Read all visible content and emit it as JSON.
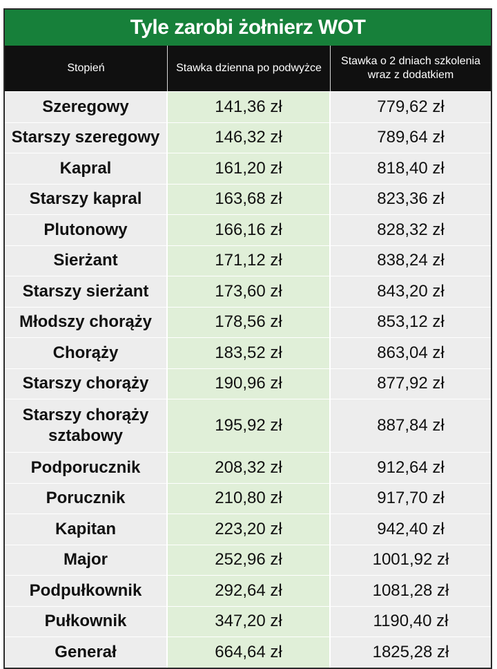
{
  "title": "Tyle zarobi żołnierz WOT",
  "headers": {
    "rank": "Stopień",
    "daily": "Stawka dzienna po podwyżce",
    "two_day": "Stawka o 2 dniach szkolenia wraz z dodatkiem"
  },
  "chart_data": {
    "type": "table",
    "title": "Tyle zarobi żołnierz WOT",
    "columns": [
      "Stopień",
      "Stawka dzienna po podwyżce",
      "Stawka o 2 dniach szkolenia wraz z dodatkiem"
    ],
    "rows": [
      {
        "rank": "Szeregowy",
        "daily": "141,36 zł",
        "two_day": "779,62 zł"
      },
      {
        "rank": "Starszy szeregowy",
        "daily": "146,32 zł",
        "two_day": "789,64 zł"
      },
      {
        "rank": "Kapral",
        "daily": "161,20 zł",
        "two_day": "818,40 zł"
      },
      {
        "rank": "Starszy kapral",
        "daily": "163,68 zł",
        "two_day": "823,36 zł"
      },
      {
        "rank": "Plutonowy",
        "daily": "166,16 zł",
        "two_day": "828,32 zł"
      },
      {
        "rank": "Sierżant",
        "daily": "171,12 zł",
        "two_day": "838,24 zł"
      },
      {
        "rank": "Starszy sierżant",
        "daily": "173,60 zł",
        "two_day": "843,20 zł"
      },
      {
        "rank": "Młodszy chorąży",
        "daily": "178,56 zł",
        "two_day": "853,12 zł"
      },
      {
        "rank": "Chorąży",
        "daily": "183,52 zł",
        "two_day": "863,04 zł"
      },
      {
        "rank": "Starszy chorąży",
        "daily": "190,96 zł",
        "two_day": "877,92 zł"
      },
      {
        "rank": "Starszy chorąży sztabowy",
        "daily": "195,92 zł",
        "two_day": "887,84 zł"
      },
      {
        "rank": "Podporucznik",
        "daily": "208,32 zł",
        "two_day": "912,64 zł"
      },
      {
        "rank": "Porucznik",
        "daily": "210,80 zł",
        "two_day": "917,70 zł"
      },
      {
        "rank": "Kapitan",
        "daily": "223,20 zł",
        "two_day": "942,40 zł"
      },
      {
        "rank": "Major",
        "daily": "252,96 zł",
        "two_day": "1001,92 zł"
      },
      {
        "rank": "Podpułkownik",
        "daily": "292,64 zł",
        "two_day": "1081,28 zł"
      },
      {
        "rank": "Pułkownik",
        "daily": "347,20 zł",
        "two_day": "1190,40 zł"
      },
      {
        "rank": "Generał",
        "daily": "664,64 zł",
        "two_day": "1825,28 zł"
      }
    ]
  },
  "colors": {
    "title_bg": "#17803a",
    "header_bg": "#101010",
    "row_bg": "#ededed",
    "highlight_col_bg": "#e0efd8"
  }
}
